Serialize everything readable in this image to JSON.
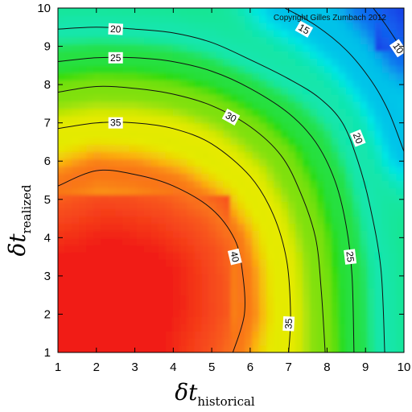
{
  "chart_data": {
    "type": "heatmap",
    "copyright": "Copyright Gilles Zumbach 2012",
    "x_axis": {
      "symbol": "δt",
      "subscript": "historical",
      "range": [
        1,
        10
      ],
      "ticks": [
        "1",
        "2",
        "3",
        "4",
        "5",
        "6",
        "7",
        "8",
        "9",
        "10"
      ]
    },
    "y_axis": {
      "symbol": "δt",
      "subscript": "realized",
      "range": [
        1,
        10
      ],
      "ticks": [
        "1",
        "2",
        "3",
        "4",
        "5",
        "6",
        "7",
        "8",
        "9",
        "10"
      ]
    },
    "colorscale": [
      {
        "value": 3,
        "color": "#1f2ee0"
      },
      {
        "value": 10,
        "color": "#0f66f0"
      },
      {
        "value": 17,
        "color": "#00e6e6"
      },
      {
        "value": 22,
        "color": "#1de689"
      },
      {
        "value": 27,
        "color": "#2bdc12"
      },
      {
        "value": 31,
        "color": "#9ae20a"
      },
      {
        "value": 35,
        "color": "#e6ea00"
      },
      {
        "value": 38,
        "color": "#fbb20f"
      },
      {
        "value": 41,
        "color": "#f8561f"
      },
      {
        "value": 44,
        "color": "#f11d12"
      }
    ],
    "contours": [
      {
        "level": 10,
        "points": [
          [
            9.2,
            10.0
          ],
          [
            9.5,
            9.6
          ],
          [
            9.8,
            9.15
          ],
          [
            10.0,
            8.85
          ]
        ],
        "labels": [
          {
            "text": "10",
            "x": 9.85,
            "y": 8.95
          }
        ]
      },
      {
        "level": 15,
        "points": [
          [
            6.9,
            10.0
          ],
          [
            7.7,
            9.55
          ],
          [
            8.5,
            8.9
          ],
          [
            9.15,
            8.1
          ],
          [
            9.6,
            7.3
          ],
          [
            10.0,
            6.25
          ]
        ],
        "labels": [
          {
            "text": "15",
            "x": 7.4,
            "y": 9.45
          }
        ]
      },
      {
        "level": 20,
        "points": [
          [
            1.0,
            9.45
          ],
          [
            2.0,
            9.5
          ],
          [
            3.0,
            9.45
          ],
          [
            4.0,
            9.35
          ],
          [
            5.0,
            9.1
          ],
          [
            6.0,
            8.65
          ],
          [
            7.0,
            8.15
          ],
          [
            7.8,
            7.65
          ],
          [
            8.4,
            7.0
          ],
          [
            8.8,
            6.0
          ],
          [
            9.1,
            4.9
          ],
          [
            9.4,
            3.2
          ],
          [
            9.5,
            1.0
          ]
        ],
        "labels": [
          {
            "text": "20",
            "x": 2.5,
            "y": 9.45
          },
          {
            "text": "20",
            "x": 8.8,
            "y": 6.6
          }
        ]
      },
      {
        "level": 25,
        "points": [
          [
            1.0,
            8.6
          ],
          [
            2.0,
            8.7
          ],
          [
            3.0,
            8.7
          ],
          [
            4.0,
            8.6
          ],
          [
            5.0,
            8.35
          ],
          [
            6.0,
            7.9
          ],
          [
            7.0,
            7.25
          ],
          [
            7.7,
            6.5
          ],
          [
            8.2,
            5.5
          ],
          [
            8.5,
            4.3
          ],
          [
            8.65,
            3.0
          ],
          [
            8.7,
            1.0
          ]
        ],
        "labels": [
          {
            "text": "25",
            "x": 2.5,
            "y": 8.7
          },
          {
            "text": "25",
            "x": 8.6,
            "y": 3.5
          }
        ]
      },
      {
        "level": 30,
        "points": [
          [
            1.0,
            7.8
          ],
          [
            2.0,
            7.95
          ],
          [
            3.0,
            7.9
          ],
          [
            4.0,
            7.75
          ],
          [
            5.0,
            7.45
          ],
          [
            6.0,
            6.9
          ],
          [
            6.8,
            6.15
          ],
          [
            7.3,
            5.2
          ],
          [
            7.7,
            4.0
          ],
          [
            7.85,
            2.6
          ],
          [
            7.95,
            1.0
          ]
        ],
        "labels": [
          {
            "text": "30",
            "x": 5.5,
            "y": 7.15
          }
        ]
      },
      {
        "level": 35,
        "points": [
          [
            1.0,
            6.85
          ],
          [
            2.0,
            7.0
          ],
          [
            3.0,
            7.0
          ],
          [
            4.0,
            6.85
          ],
          [
            5.0,
            6.45
          ],
          [
            6.0,
            5.6
          ],
          [
            6.6,
            4.6
          ],
          [
            6.95,
            3.4
          ],
          [
            7.05,
            2.0
          ],
          [
            7.0,
            1.0
          ]
        ],
        "labels": [
          {
            "text": "35",
            "x": 2.5,
            "y": 7.0
          },
          {
            "text": "35",
            "x": 7.0,
            "y": 1.75
          }
        ]
      },
      {
        "level": 40,
        "points": [
          [
            1.0,
            5.35
          ],
          [
            2.0,
            5.75
          ],
          [
            3.0,
            5.65
          ],
          [
            4.0,
            5.35
          ],
          [
            5.0,
            4.75
          ],
          [
            5.6,
            3.95
          ],
          [
            5.8,
            3.1
          ],
          [
            5.85,
            2.0
          ],
          [
            5.55,
            1.0
          ]
        ],
        "labels": [
          {
            "text": "40",
            "x": 5.6,
            "y": 3.5
          }
        ]
      }
    ]
  }
}
